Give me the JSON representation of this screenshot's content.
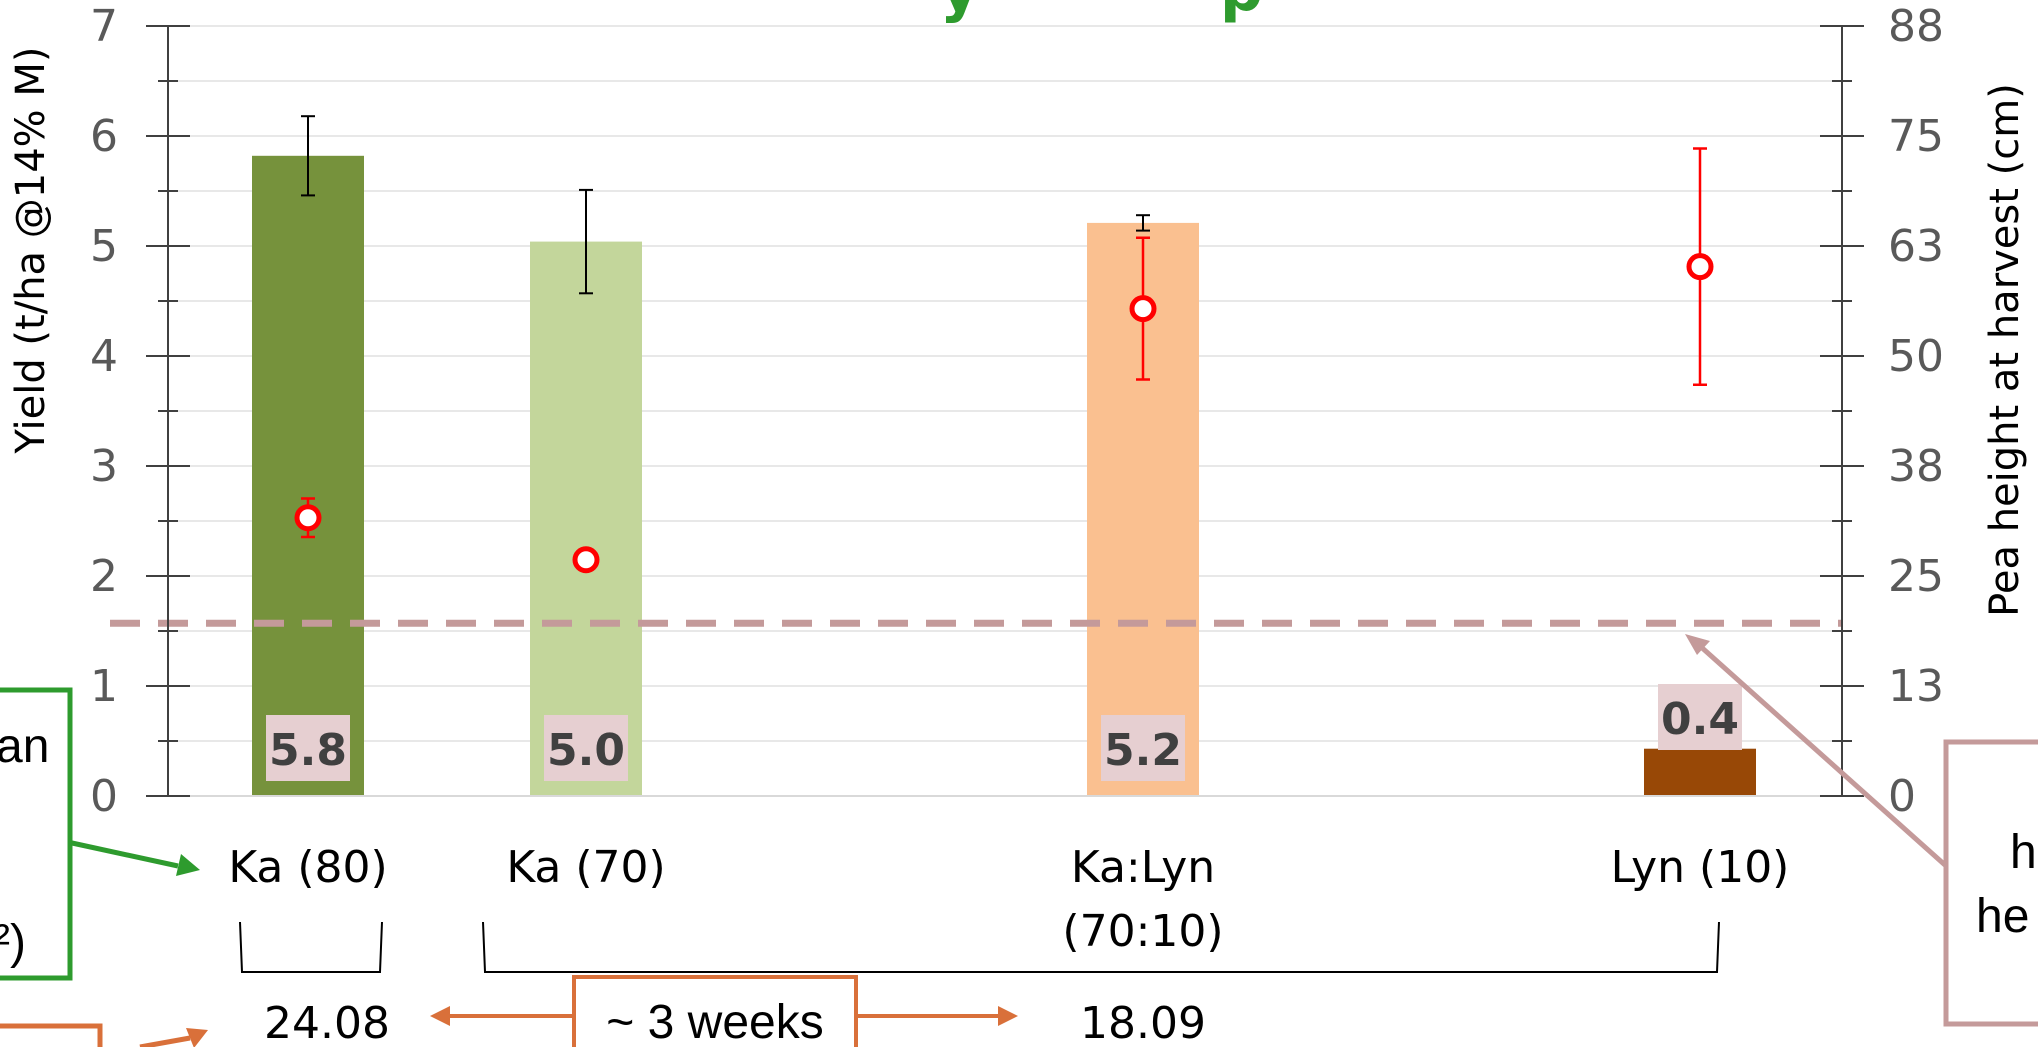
{
  "chart_data": {
    "type": "bar",
    "title": "",
    "ylabel": "Yield (t/ha @14% M)",
    "y2label": "Pea height at harvest (cm)",
    "ylim": [
      0,
      7
    ],
    "y_ticks": [
      "0",
      "1",
      "2",
      "3",
      "4",
      "5",
      "6",
      "7"
    ],
    "y2_ticks": [
      "0",
      "13",
      "25",
      "38",
      "50",
      "63",
      "75",
      "88"
    ],
    "y2lim": [
      0,
      88
    ],
    "categories": [
      "Ka (80)",
      "Ka (70)",
      "Ka:Lyn\n(70:10)",
      "Lyn (10)"
    ],
    "category_lines": [
      [
        "Ka (80)"
      ],
      [
        "Ka (70)"
      ],
      [
        "Ka:Lyn",
        "(70:10)"
      ],
      [
        "Lyn (10)"
      ]
    ],
    "series": [
      {
        "name": "",
        "kind": "bar",
        "axis": "left",
        "values": [
          5.82,
          5.04,
          5.21,
          0.43
        ],
        "error": [
          0.36,
          0.47,
          0.07,
          null
        ],
        "data_labels": [
          "5.8",
          "5.0",
          "5.2",
          "0.4"
        ],
        "colors": [
          "#76923c",
          "#c3d69b",
          "#fac090",
          "#984806"
        ]
      },
      {
        "name": "",
        "kind": "point",
        "axis": "right",
        "color": "#ff0000",
        "values": [
          31.8,
          27.0,
          55.7,
          60.5
        ],
        "error": [
          2.2,
          null,
          8.1,
          13.5
        ]
      }
    ],
    "reference_line": {
      "axis": "left",
      "value": 1.57,
      "color": "#c49a9a",
      "style": "dashed"
    },
    "grid": true,
    "annotations": {
      "date_left": "24.08",
      "date_right": "18.09",
      "interval": "~ 3 weeks"
    },
    "colors": {
      "arrow_green": "#2e9b2e",
      "arrow_orange": "#d9703a",
      "arrow_pink": "#c49a9a"
    }
  },
  "callouts": {
    "left_box_fragment_1": "an",
    "left_box_fragment_2": "²)",
    "right_box_fragment_1": "h",
    "right_box_fragment_2": "he",
    "title_fragment": "y",
    "title_fragment_2": "p"
  }
}
